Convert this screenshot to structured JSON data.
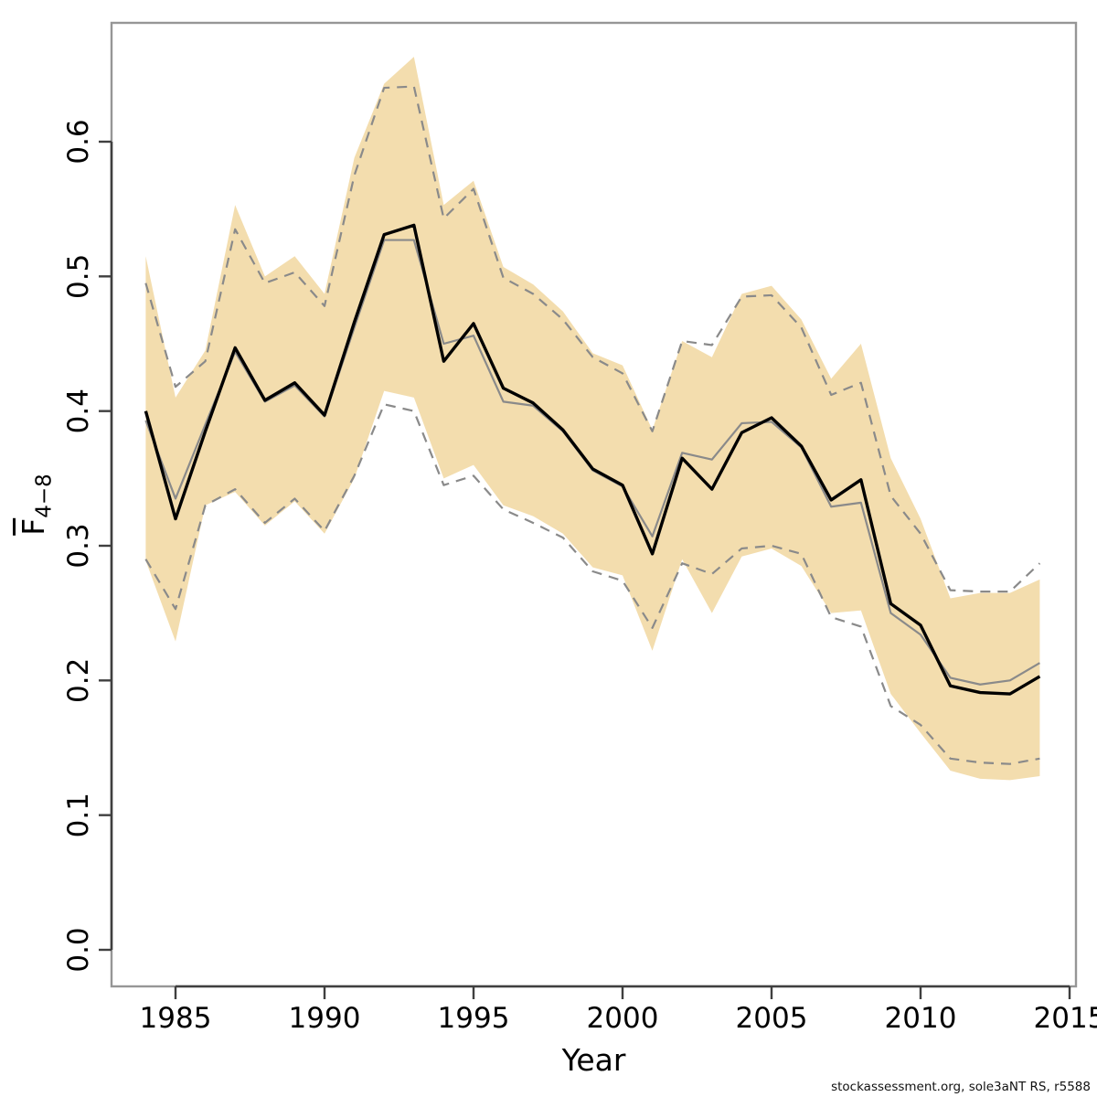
{
  "chart_data": {
    "type": "line",
    "title": "",
    "xlabel": "Year",
    "ylabel_base": "F",
    "ylabel_sub": "4−8",
    "legend": "none",
    "grid": false,
    "x_range": [
      1984,
      2014
    ],
    "ylim": [
      -0.03,
      0.69
    ],
    "x_ticks": [
      1985,
      1990,
      1995,
      2000,
      2005,
      2010,
      2015
    ],
    "y_ticks": [
      "0.0",
      "0.1",
      "0.2",
      "0.3",
      "0.4",
      "0.5",
      "0.6"
    ],
    "x": [
      1984,
      1985,
      1986,
      1987,
      1988,
      1989,
      1990,
      1991,
      1992,
      1993,
      1994,
      1995,
      1996,
      1997,
      1998,
      1999,
      2000,
      2001,
      2002,
      2003,
      2004,
      2005,
      2006,
      2007,
      2008,
      2009,
      2010,
      2011,
      2012,
      2013,
      2014
    ],
    "series": [
      {
        "name": "current-estimate",
        "style": "solid-black",
        "values": [
          0.4,
          0.32,
          0.385,
          0.447,
          0.408,
          0.421,
          0.397,
          0.466,
          0.531,
          0.538,
          0.437,
          0.465,
          0.417,
          0.406,
          0.386,
          0.357,
          0.345,
          0.294,
          0.365,
          0.342,
          0.384,
          0.395,
          0.374,
          0.334,
          0.349,
          0.257,
          0.241,
          0.196,
          0.191,
          0.19,
          0.203
        ]
      },
      {
        "name": "previous-estimate",
        "style": "solid-gray",
        "values": [
          0.393,
          0.335,
          0.39,
          0.444,
          0.407,
          0.419,
          0.396,
          0.462,
          0.527,
          0.527,
          0.45,
          0.456,
          0.407,
          0.404,
          0.385,
          0.356,
          0.344,
          0.307,
          0.369,
          0.364,
          0.391,
          0.392,
          0.373,
          0.329,
          0.332,
          0.25,
          0.234,
          0.202,
          0.197,
          0.2,
          0.213
        ]
      },
      {
        "name": "previous-ci-upper",
        "style": "dashed-gray",
        "values": [
          0.495,
          0.418,
          0.437,
          0.535,
          0.495,
          0.503,
          0.478,
          0.575,
          0.64,
          0.641,
          0.543,
          0.565,
          0.499,
          0.487,
          0.468,
          0.44,
          0.428,
          0.385,
          0.452,
          0.449,
          0.485,
          0.486,
          0.462,
          0.412,
          0.421,
          0.337,
          0.309,
          0.267,
          0.266,
          0.266,
          0.287
        ]
      },
      {
        "name": "previous-ci-lower",
        "style": "dashed-gray",
        "values": [
          0.29,
          0.253,
          0.33,
          0.342,
          0.317,
          0.335,
          0.311,
          0.352,
          0.405,
          0.4,
          0.345,
          0.352,
          0.327,
          0.317,
          0.306,
          0.281,
          0.274,
          0.239,
          0.287,
          0.279,
          0.298,
          0.3,
          0.294,
          0.247,
          0.24,
          0.181,
          0.167,
          0.142,
          0.139,
          0.138,
          0.142
        ]
      }
    ],
    "band": {
      "name": "current-ci-band",
      "upper": [
        0.515,
        0.41,
        0.445,
        0.553,
        0.5,
        0.515,
        0.487,
        0.588,
        0.643,
        0.663,
        0.553,
        0.571,
        0.507,
        0.494,
        0.474,
        0.443,
        0.434,
        0.386,
        0.452,
        0.44,
        0.487,
        0.493,
        0.468,
        0.424,
        0.45,
        0.365,
        0.32,
        0.261,
        0.265,
        0.265,
        0.275
      ],
      "lower": [
        0.289,
        0.229,
        0.33,
        0.34,
        0.315,
        0.333,
        0.309,
        0.35,
        0.415,
        0.41,
        0.35,
        0.36,
        0.33,
        0.322,
        0.309,
        0.284,
        0.278,
        0.222,
        0.29,
        0.25,
        0.292,
        0.298,
        0.285,
        0.25,
        0.252,
        0.19,
        0.161,
        0.133,
        0.127,
        0.126,
        0.129
      ]
    },
    "colors": {
      "band": "#f3ddae",
      "estimate_line": "#000000",
      "previous_line": "#8a8a8a",
      "dashed_line": "#8a8a8a",
      "axis": "#3f3f3f",
      "box": "#969696",
      "text": "#000000"
    }
  },
  "footer": {
    "text": "stockassessment.org, sole3aNT RS, r5588"
  }
}
